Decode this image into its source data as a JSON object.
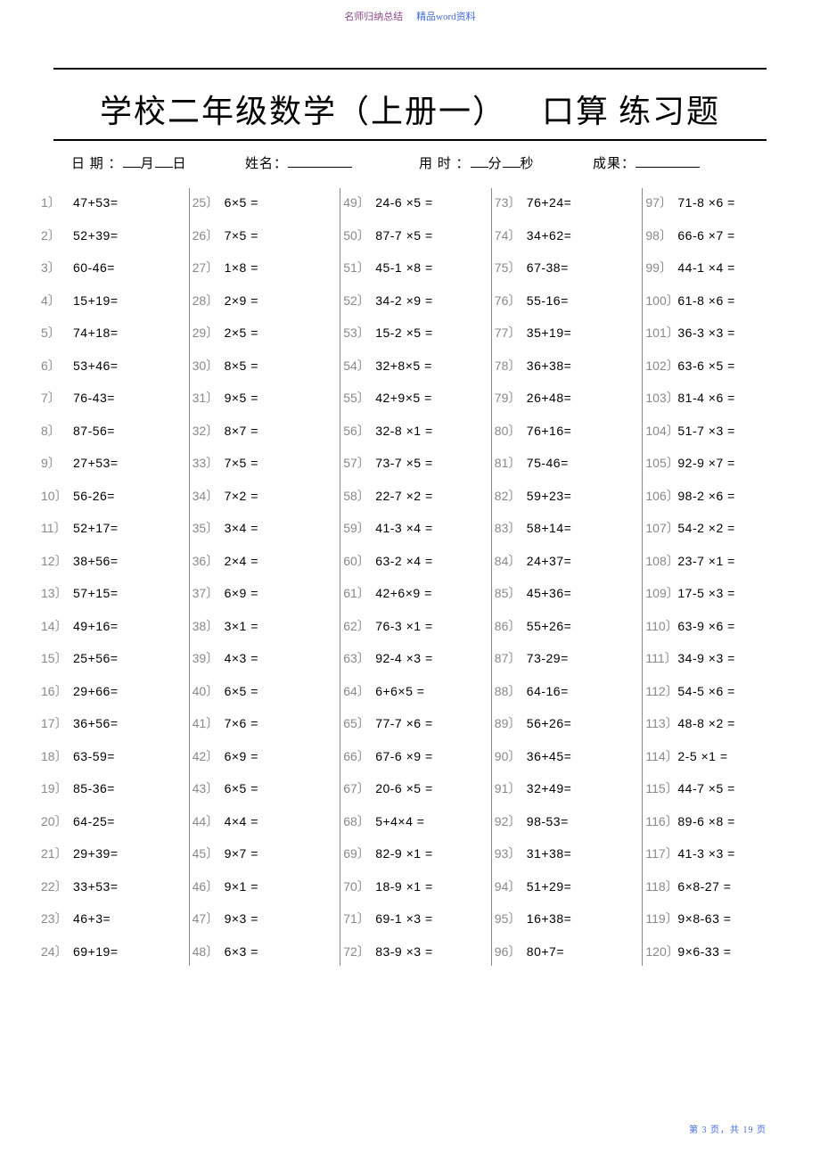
{
  "header": {
    "left": "名师归纳总结",
    "right": "精品word资料"
  },
  "title": {
    "part1": "学校二年级数学（上册一）",
    "part2": "口算",
    "part3": "练习题"
  },
  "info": {
    "date_label": "日 期 ：",
    "month": "月",
    "day": "日",
    "name_label": "姓名：",
    "time_label": "用 时 ：",
    "min": "分",
    "sec": "秒",
    "score_label": "成果："
  },
  "columns": [
    [
      {
        "n": "1〕",
        "e": "47+53="
      },
      {
        "n": "2〕",
        "e": "52+39="
      },
      {
        "n": "3〕",
        "e": "60-46="
      },
      {
        "n": "4〕",
        "e": "15+19="
      },
      {
        "n": "5〕",
        "e": "74+18="
      },
      {
        "n": "6〕",
        "e": "53+46="
      },
      {
        "n": "7〕",
        "e": "76-43="
      },
      {
        "n": "8〕",
        "e": "87-56="
      },
      {
        "n": "9〕",
        "e": "27+53="
      },
      {
        "n": "10〕",
        "e": "56-26="
      },
      {
        "n": "11〕",
        "e": "52+17="
      },
      {
        "n": "12〕",
        "e": "38+56="
      },
      {
        "n": "13〕",
        "e": "57+15="
      },
      {
        "n": "14〕",
        "e": "49+16="
      },
      {
        "n": "15〕",
        "e": "25+56="
      },
      {
        "n": "16〕",
        "e": "29+66="
      },
      {
        "n": "17〕",
        "e": "36+56="
      },
      {
        "n": "18〕",
        "e": "63-59="
      },
      {
        "n": "19〕",
        "e": "85-36="
      },
      {
        "n": "20〕",
        "e": "64-25="
      },
      {
        "n": "21〕",
        "e": "29+39="
      },
      {
        "n": "22〕",
        "e": "33+53="
      },
      {
        "n": "23〕",
        "e": "46+3="
      },
      {
        "n": "24〕",
        "e": "69+19="
      }
    ],
    [
      {
        "n": "25〕",
        "e": "6×5 ="
      },
      {
        "n": "26〕",
        "e": "7×5 ="
      },
      {
        "n": "27〕",
        "e": "1×8 ="
      },
      {
        "n": "28〕",
        "e": "2×9 ="
      },
      {
        "n": "29〕",
        "e": "2×5 ="
      },
      {
        "n": "30〕",
        "e": "8×5 ="
      },
      {
        "n": "31〕",
        "e": "9×5 ="
      },
      {
        "n": "32〕",
        "e": "8×7 ="
      },
      {
        "n": "33〕",
        "e": "7×5 ="
      },
      {
        "n": "34〕",
        "e": "7×2 ="
      },
      {
        "n": "35〕",
        "e": "3×4 ="
      },
      {
        "n": "36〕",
        "e": "2×4 ="
      },
      {
        "n": "37〕",
        "e": "6×9 ="
      },
      {
        "n": "38〕",
        "e": "3×1 ="
      },
      {
        "n": "39〕",
        "e": "4×3 ="
      },
      {
        "n": "40〕",
        "e": "6×5 ="
      },
      {
        "n": "41〕",
        "e": "7×6 ="
      },
      {
        "n": "42〕",
        "e": "6×9 ="
      },
      {
        "n": "43〕",
        "e": "6×5 ="
      },
      {
        "n": "44〕",
        "e": "4×4 ="
      },
      {
        "n": "45〕",
        "e": "9×7 ="
      },
      {
        "n": "46〕",
        "e": "9×1 ="
      },
      {
        "n": "47〕",
        "e": "9×3 ="
      },
      {
        "n": "48〕",
        "e": "6×3 ="
      }
    ],
    [
      {
        "n": "49〕",
        "e": "24-6 ×5 ="
      },
      {
        "n": "50〕",
        "e": "87-7 ×5 ="
      },
      {
        "n": "51〕",
        "e": "45-1 ×8 ="
      },
      {
        "n": "52〕",
        "e": "34-2 ×9 ="
      },
      {
        "n": "53〕",
        "e": "15-2 ×5 ="
      },
      {
        "n": "54〕",
        "e": "32+8×5 ="
      },
      {
        "n": "55〕",
        "e": "42+9×5 ="
      },
      {
        "n": "56〕",
        "e": "32-8 ×1 ="
      },
      {
        "n": "57〕",
        "e": "73-7 ×5 ="
      },
      {
        "n": "58〕",
        "e": "22-7 ×2 ="
      },
      {
        "n": "59〕",
        "e": "41-3 ×4 ="
      },
      {
        "n": "60〕",
        "e": "63-2 ×4 ="
      },
      {
        "n": "61〕",
        "e": "42+6×9 ="
      },
      {
        "n": "62〕",
        "e": "76-3 ×1 ="
      },
      {
        "n": "63〕",
        "e": "92-4 ×3 ="
      },
      {
        "n": "64〕",
        "e": "6+6×5 ="
      },
      {
        "n": "65〕",
        "e": "77-7 ×6 ="
      },
      {
        "n": "66〕",
        "e": "67-6 ×9 ="
      },
      {
        "n": "67〕",
        "e": "20-6 ×5 ="
      },
      {
        "n": "68〕",
        "e": "5+4×4 ="
      },
      {
        "n": "69〕",
        "e": "82-9 ×1 ="
      },
      {
        "n": "70〕",
        "e": "18-9 ×1 ="
      },
      {
        "n": "71〕",
        "e": "69-1 ×3 ="
      },
      {
        "n": "72〕",
        "e": "83-9 ×3 ="
      }
    ],
    [
      {
        "n": "73〕",
        "e": "76+24="
      },
      {
        "n": "74〕",
        "e": "34+62="
      },
      {
        "n": "75〕",
        "e": "67-38="
      },
      {
        "n": "76〕",
        "e": "55-16="
      },
      {
        "n": "77〕",
        "e": "35+19="
      },
      {
        "n": "78〕",
        "e": "36+38="
      },
      {
        "n": "79〕",
        "e": "26+48="
      },
      {
        "n": "80〕",
        "e": "76+16="
      },
      {
        "n": "81〕",
        "e": "75-46="
      },
      {
        "n": "82〕",
        "e": "59+23="
      },
      {
        "n": "83〕",
        "e": "58+14="
      },
      {
        "n": "84〕",
        "e": "24+37="
      },
      {
        "n": "85〕",
        "e": "45+36="
      },
      {
        "n": "86〕",
        "e": "55+26="
      },
      {
        "n": "87〕",
        "e": "73-29="
      },
      {
        "n": "88〕",
        "e": "64-16="
      },
      {
        "n": "89〕",
        "e": "56+26="
      },
      {
        "n": "90〕",
        "e": "36+45="
      },
      {
        "n": "91〕",
        "e": "32+49="
      },
      {
        "n": "92〕",
        "e": "98-53="
      },
      {
        "n": "93〕",
        "e": "31+38="
      },
      {
        "n": "94〕",
        "e": "51+29="
      },
      {
        "n": "95〕",
        "e": "16+38="
      },
      {
        "n": "96〕",
        "e": "80+7="
      }
    ],
    [
      {
        "n": "97〕",
        "e": "71-8 ×6 ="
      },
      {
        "n": "98〕",
        "e": "66-6 ×7 ="
      },
      {
        "n": "99〕",
        "e": "44-1 ×4 ="
      },
      {
        "n": "100〕",
        "e": "61-8 ×6 ="
      },
      {
        "n": "101〕",
        "e": "36-3 ×3 ="
      },
      {
        "n": "102〕",
        "e": "63-6 ×5 ="
      },
      {
        "n": "103〕",
        "e": "81-4 ×6 ="
      },
      {
        "n": "104〕",
        "e": "51-7 ×3 ="
      },
      {
        "n": "105〕",
        "e": "92-9 ×7 ="
      },
      {
        "n": "106〕",
        "e": "98-2 ×6 ="
      },
      {
        "n": "107〕",
        "e": "54-2 ×2 ="
      },
      {
        "n": "108〕",
        "e": "23-7 ×1 ="
      },
      {
        "n": "109〕",
        "e": "17-5 ×3 ="
      },
      {
        "n": "110〕",
        "e": "63-9 ×6 ="
      },
      {
        "n": "111〕",
        "e": "34-9 ×3 ="
      },
      {
        "n": "112〕",
        "e": "54-5 ×6 ="
      },
      {
        "n": "113〕",
        "e": "48-8 ×2 ="
      },
      {
        "n": "114〕",
        "e": "2-5 ×1 ="
      },
      {
        "n": "115〕",
        "e": "44-7 ×5 ="
      },
      {
        "n": "116〕",
        "e": "89-6 ×8 ="
      },
      {
        "n": "117〕",
        "e": "41-3 ×3 ="
      },
      {
        "n": "118〕",
        "e": "6×8-27 ="
      },
      {
        "n": "119〕",
        "e": "9×8-63 ="
      },
      {
        "n": "120〕",
        "e": "9×6-33 ="
      }
    ]
  ],
  "footer": "第 3 页，共 19 页"
}
